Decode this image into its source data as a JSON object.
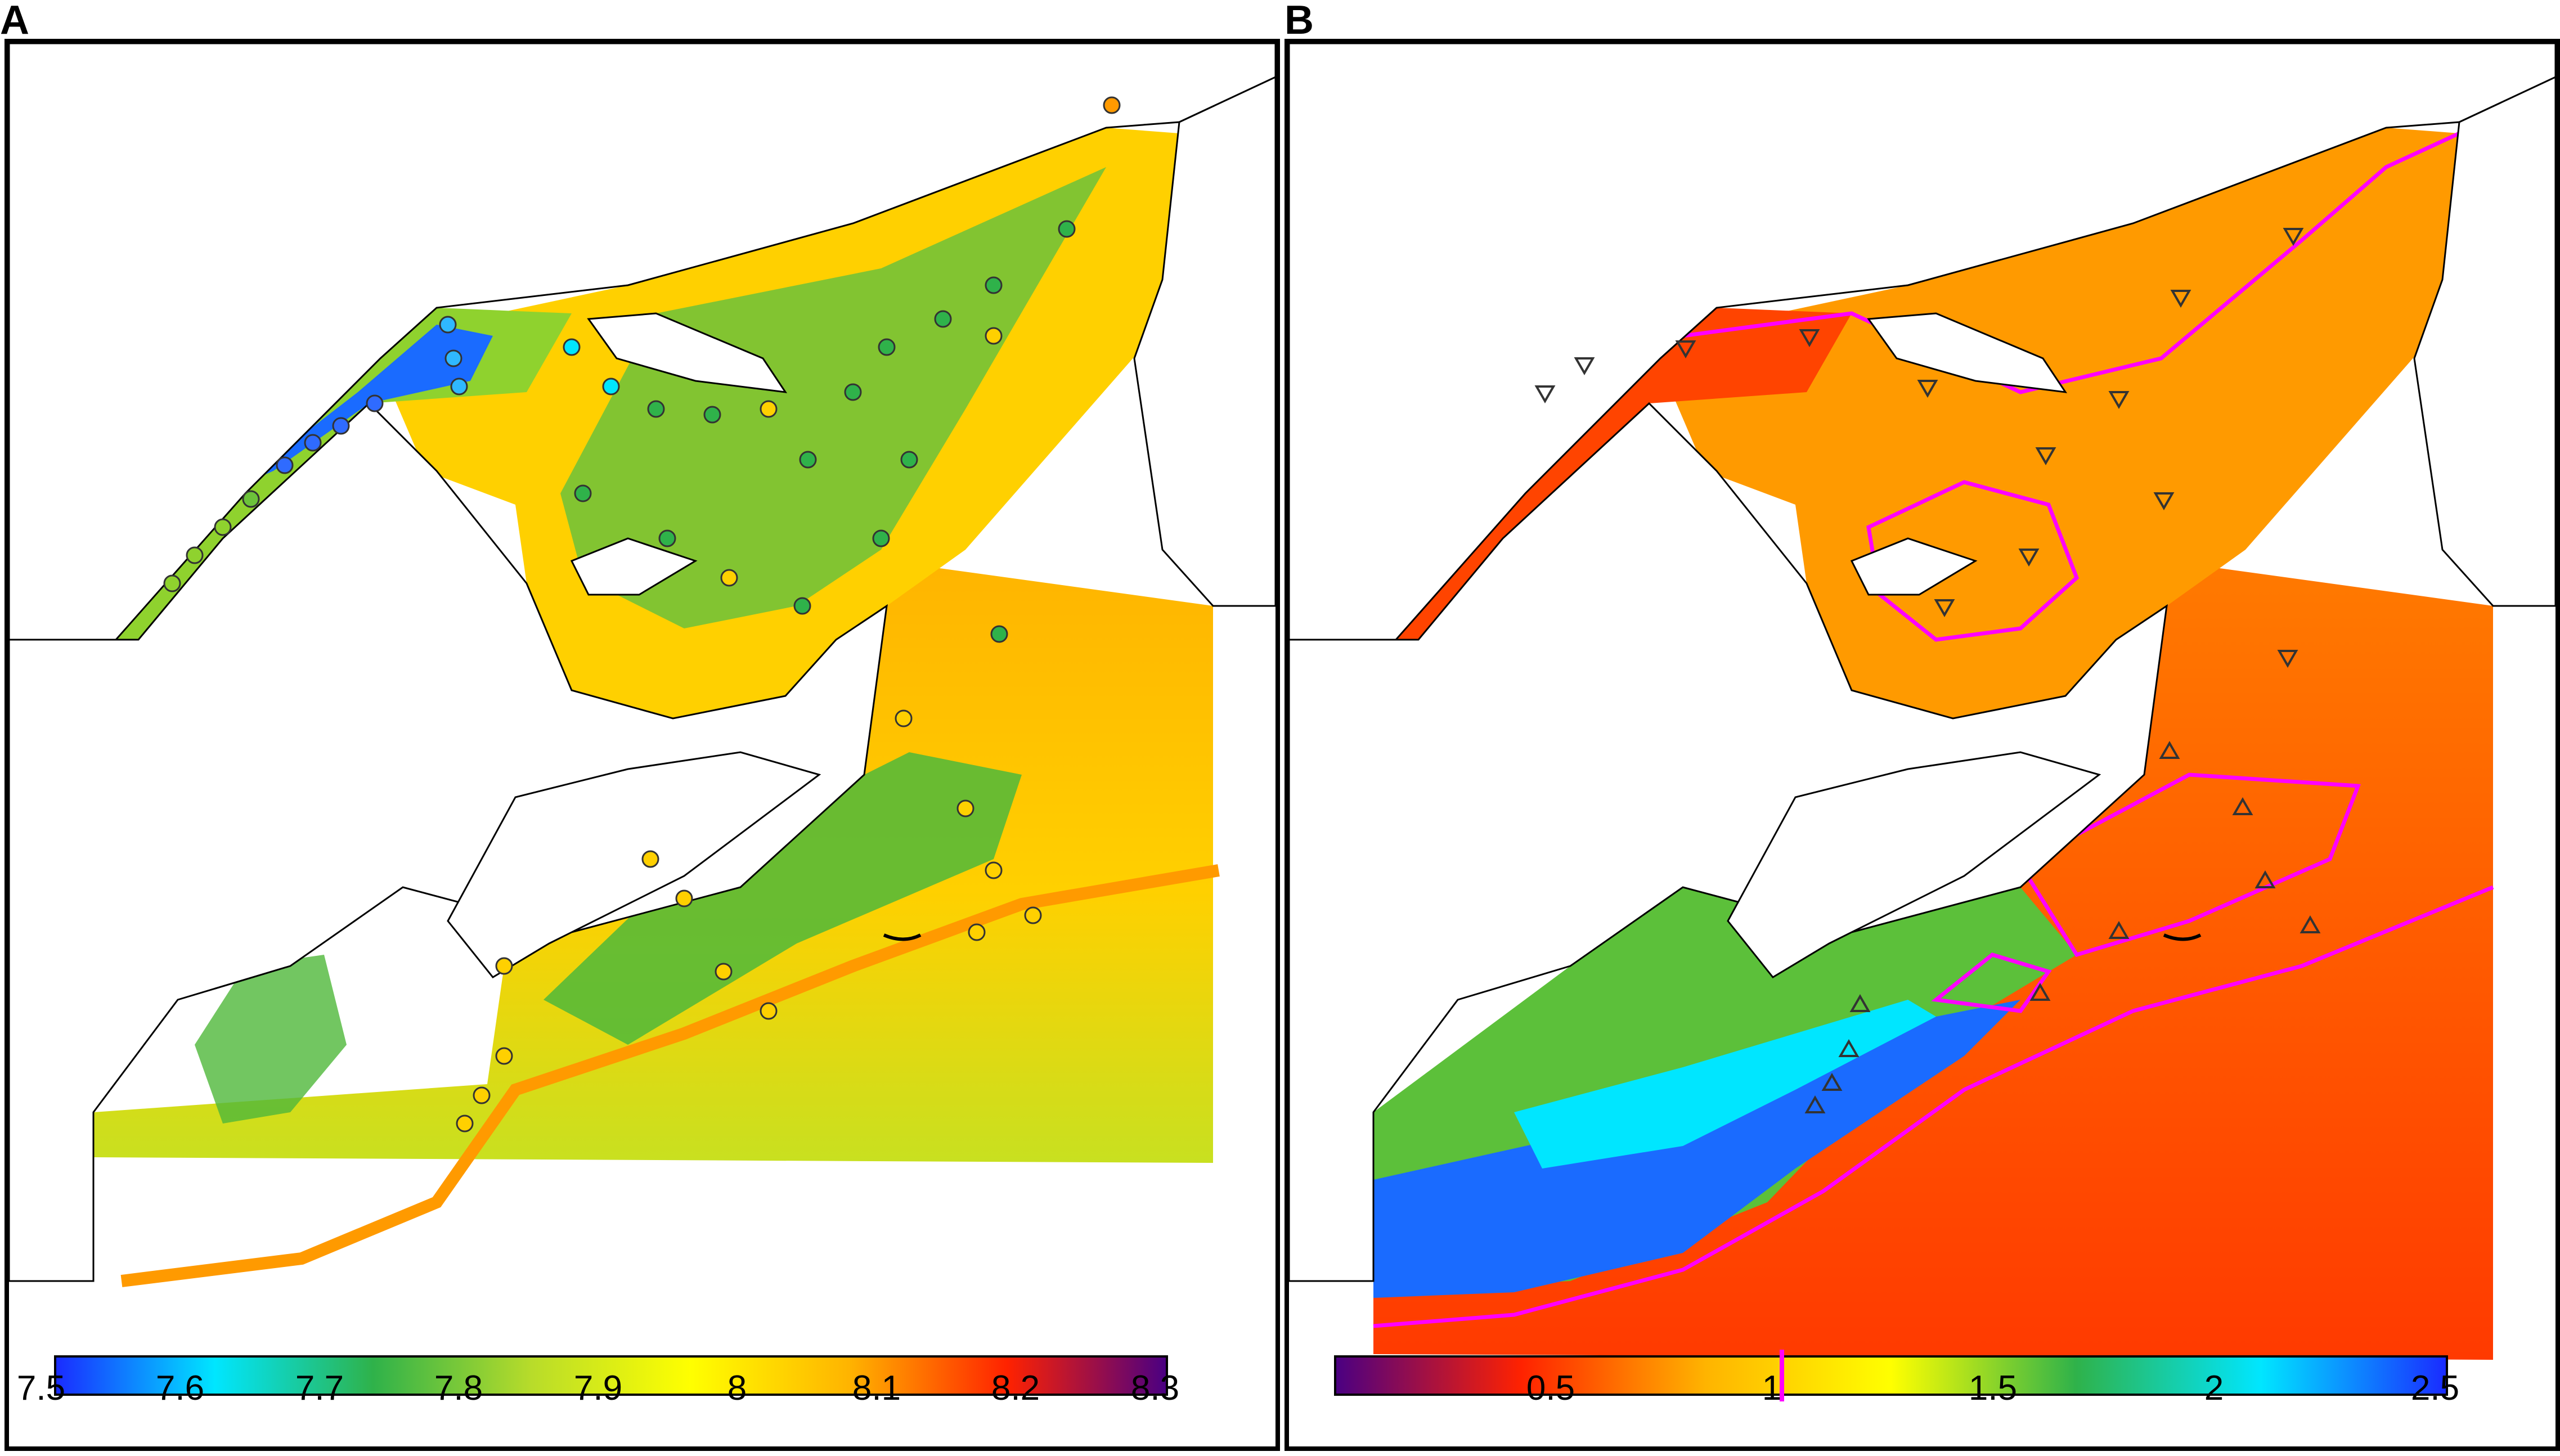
{
  "panels": [
    {
      "letter": "A",
      "colorbar": {
        "colors": [
          "#1a2cff",
          "#00e6ff",
          "#2fb24a",
          "#b8dc2a",
          "#ffff00",
          "#ffb400",
          "#ff2200",
          "#4b0082"
        ],
        "ticks": [
          "7.5",
          "7.6",
          "7.7",
          "7.8",
          "7.9",
          "8",
          "8.1",
          "8.2",
          "8.3"
        ]
      },
      "markers": {
        "shape": "circle"
      }
    },
    {
      "letter": "B",
      "colorbar": {
        "colors": [
          "#4b0082",
          "#ff2200",
          "#ffb400",
          "#ffff00",
          "#2fb24a",
          "#00e6ff",
          "#1a2cff"
        ],
        "ticks": [
          "0.5",
          "1",
          "1.5",
          "2",
          "2.5"
        ]
      },
      "contour_color": "#ff00ff",
      "markers": {
        "shapes": [
          "triangle-up",
          "triangle-down"
        ]
      }
    }
  ]
}
